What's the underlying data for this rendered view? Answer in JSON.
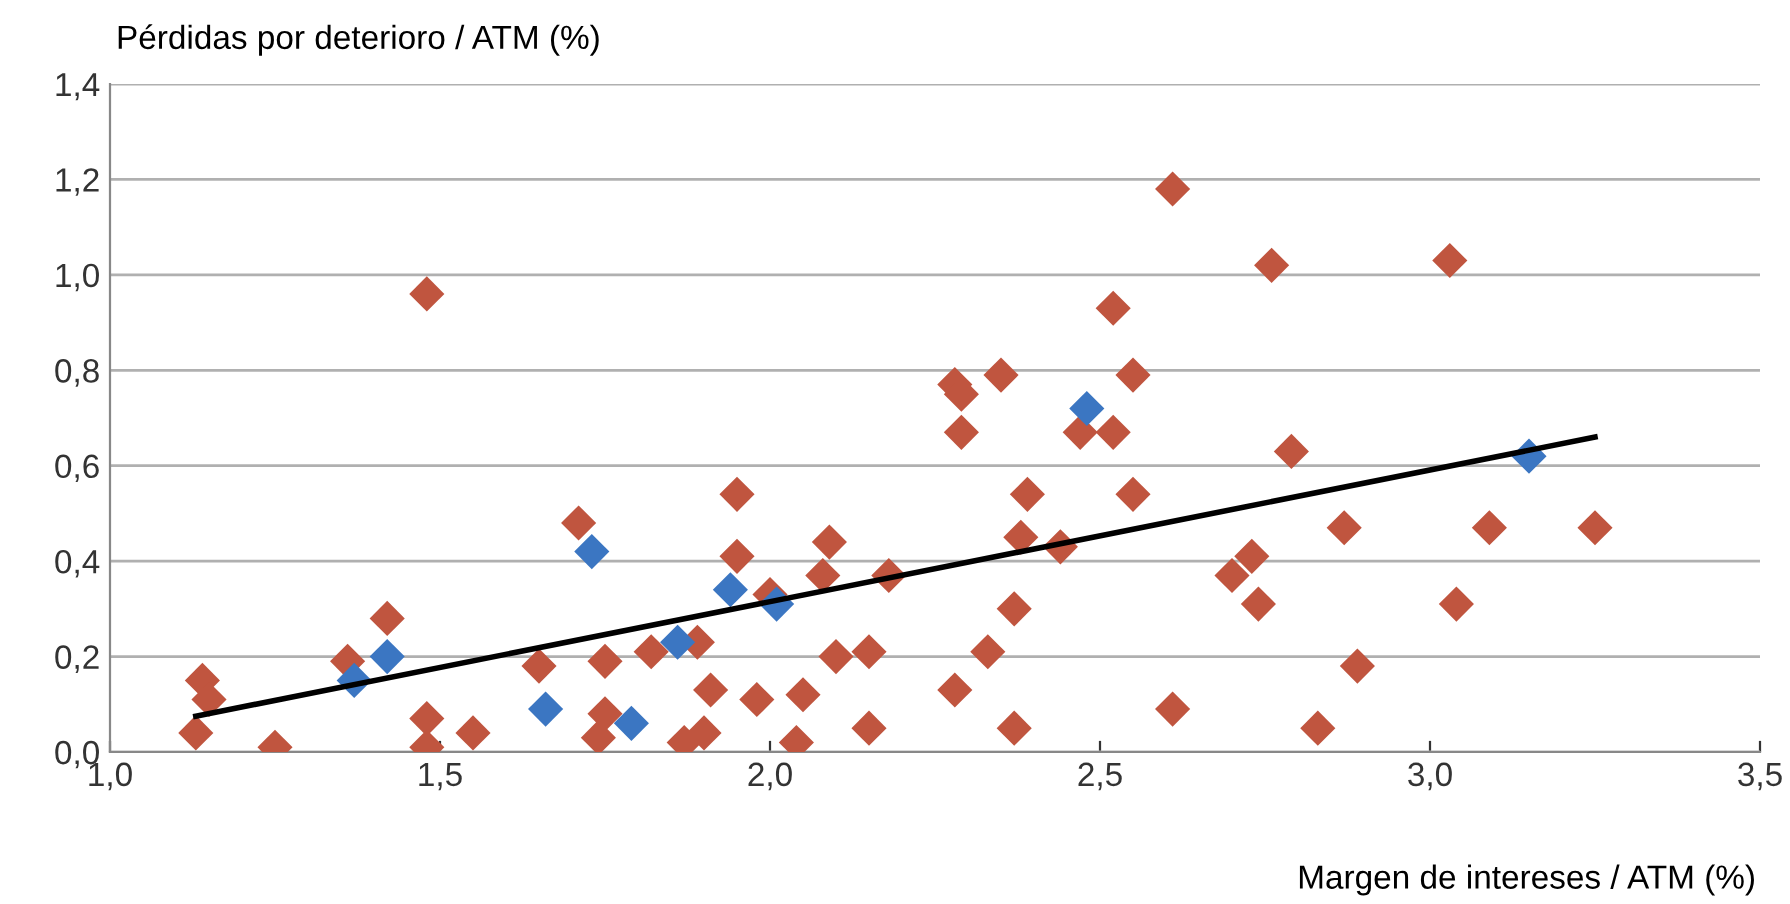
{
  "chart_data": {
    "type": "scatter",
    "xlabel": "Margen de intereses / ATM (%)",
    "ylabel": "Pérdidas por deterioro / ATM (%)",
    "xlim": [
      1.0,
      3.5
    ],
    "ylim": [
      0.0,
      1.4
    ],
    "xticks": [
      {
        "value": 1.0,
        "label": "1,0"
      },
      {
        "value": 1.5,
        "label": "1,5"
      },
      {
        "value": 2.0,
        "label": "2,0"
      },
      {
        "value": 2.5,
        "label": "2,5"
      },
      {
        "value": 3.0,
        "label": "3,0"
      },
      {
        "value": 3.5,
        "label": "3,5"
      }
    ],
    "yticks": [
      {
        "value": 0.0,
        "label": "0,0"
      },
      {
        "value": 0.2,
        "label": "0,2"
      },
      {
        "value": 0.4,
        "label": "0,4"
      },
      {
        "value": 0.6,
        "label": "0,6"
      },
      {
        "value": 0.8,
        "label": "0,8"
      },
      {
        "value": 1.0,
        "label": "1,0"
      },
      {
        "value": 1.2,
        "label": "1,2"
      },
      {
        "value": 1.4,
        "label": "1,4"
      }
    ],
    "grid": "y",
    "marker": "diamond",
    "legend": false,
    "series": [
      {
        "color": "#c0553f",
        "x": [
          1.13,
          1.14,
          1.15,
          1.25,
          1.36,
          1.42,
          1.48,
          1.48,
          1.48,
          1.55,
          1.65,
          1.71,
          1.75,
          1.75,
          1.74,
          1.82,
          1.87,
          1.89,
          1.91,
          1.9,
          1.95,
          1.95,
          1.98,
          2.0,
          2.05,
          2.04,
          2.08,
          2.09,
          2.1,
          2.15,
          2.15,
          2.18,
          2.28,
          2.28,
          2.29,
          2.29,
          2.33,
          2.35,
          2.37,
          2.37,
          2.38,
          2.39,
          2.44,
          2.47,
          2.52,
          2.52,
          2.55,
          2.55,
          2.61,
          2.61,
          2.7,
          2.73,
          2.74,
          2.76,
          2.79,
          2.83,
          2.87,
          2.89,
          3.03,
          3.04,
          3.09,
          3.25
        ],
        "values": [
          0.04,
          0.15,
          0.11,
          0.01,
          0.19,
          0.28,
          0.96,
          0.07,
          0.01,
          0.04,
          0.18,
          0.48,
          0.19,
          0.08,
          0.03,
          0.21,
          0.02,
          0.23,
          0.13,
          0.04,
          0.54,
          0.41,
          0.11,
          0.33,
          0.12,
          0.02,
          0.37,
          0.44,
          0.2,
          0.21,
          0.05,
          0.37,
          0.13,
          0.77,
          0.75,
          0.67,
          0.21,
          0.79,
          0.3,
          0.05,
          0.45,
          0.54,
          0.43,
          0.67,
          0.67,
          0.93,
          0.79,
          0.54,
          0.09,
          1.18,
          0.37,
          0.41,
          0.31,
          1.02,
          0.63,
          0.05,
          0.47,
          0.18,
          1.03,
          0.31,
          0.47,
          0.47
        ]
      },
      {
        "color": "#3b76c2",
        "x": [
          1.37,
          1.42,
          1.66,
          1.73,
          1.79,
          1.86,
          1.94,
          2.01,
          2.48,
          3.15
        ],
        "values": [
          0.15,
          0.2,
          0.09,
          0.42,
          0.06,
          0.23,
          0.34,
          0.31,
          0.72,
          0.62
        ]
      },
      {
        "type": "line",
        "color": "#000000",
        "marker": "none",
        "x": [
          1.13,
          3.25
        ],
        "values": [
          0.075,
          0.66
        ]
      }
    ]
  }
}
